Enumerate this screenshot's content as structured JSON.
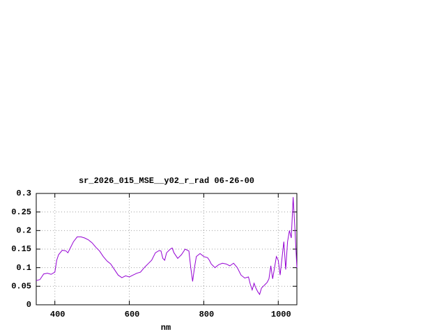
{
  "chart_data": {
    "type": "line",
    "title": "sr_2026_015_MSE__y02_r_rad 06-26-00",
    "xlabel": "nm",
    "x": [
      350,
      360,
      370,
      380,
      390,
      400,
      405,
      410,
      420,
      430,
      435,
      440,
      450,
      460,
      470,
      480,
      490,
      500,
      510,
      520,
      530,
      540,
      550,
      560,
      570,
      580,
      590,
      600,
      610,
      620,
      630,
      640,
      650,
      660,
      670,
      680,
      685,
      690,
      695,
      700,
      710,
      715,
      720,
      730,
      740,
      750,
      760,
      765,
      770,
      775,
      780,
      790,
      800,
      810,
      815,
      820,
      830,
      840,
      850,
      860,
      870,
      880,
      890,
      900,
      910,
      920,
      925,
      930,
      935,
      940,
      945,
      950,
      955,
      960,
      970,
      975,
      980,
      985,
      990,
      995,
      1000,
      1005,
      1010,
      1015,
      1020,
      1025,
      1030,
      1035,
      1040,
      1045,
      1050
    ],
    "series": [
      {
        "color": "#9400d3",
        "values": [
          0.065,
          0.068,
          0.083,
          0.085,
          0.082,
          0.088,
          0.12,
          0.135,
          0.147,
          0.145,
          0.14,
          0.15,
          0.17,
          0.183,
          0.183,
          0.18,
          0.175,
          0.167,
          0.155,
          0.145,
          0.13,
          0.118,
          0.11,
          0.095,
          0.08,
          0.073,
          0.078,
          0.075,
          0.08,
          0.085,
          0.088,
          0.1,
          0.11,
          0.12,
          0.14,
          0.146,
          0.145,
          0.125,
          0.12,
          0.14,
          0.15,
          0.153,
          0.14,
          0.125,
          0.135,
          0.15,
          0.145,
          0.1,
          0.063,
          0.1,
          0.13,
          0.138,
          0.13,
          0.127,
          0.12,
          0.11,
          0.1,
          0.108,
          0.112,
          0.11,
          0.105,
          0.112,
          0.1,
          0.08,
          0.072,
          0.075,
          0.055,
          0.04,
          0.058,
          0.045,
          0.035,
          0.028,
          0.045,
          0.05,
          0.06,
          0.07,
          0.105,
          0.07,
          0.1,
          0.13,
          0.12,
          0.08,
          0.125,
          0.17,
          0.095,
          0.17,
          0.2,
          0.18,
          0.29,
          0.2,
          0.1
        ]
      }
    ],
    "xlim": [
      350,
      1050
    ],
    "xticks": [
      400,
      600,
      800,
      1000
    ],
    "ylim": [
      0,
      0.3
    ],
    "yticks": [
      0,
      0.05,
      0.1,
      0.15,
      0.2,
      0.25,
      0.3
    ],
    "grid": true
  }
}
